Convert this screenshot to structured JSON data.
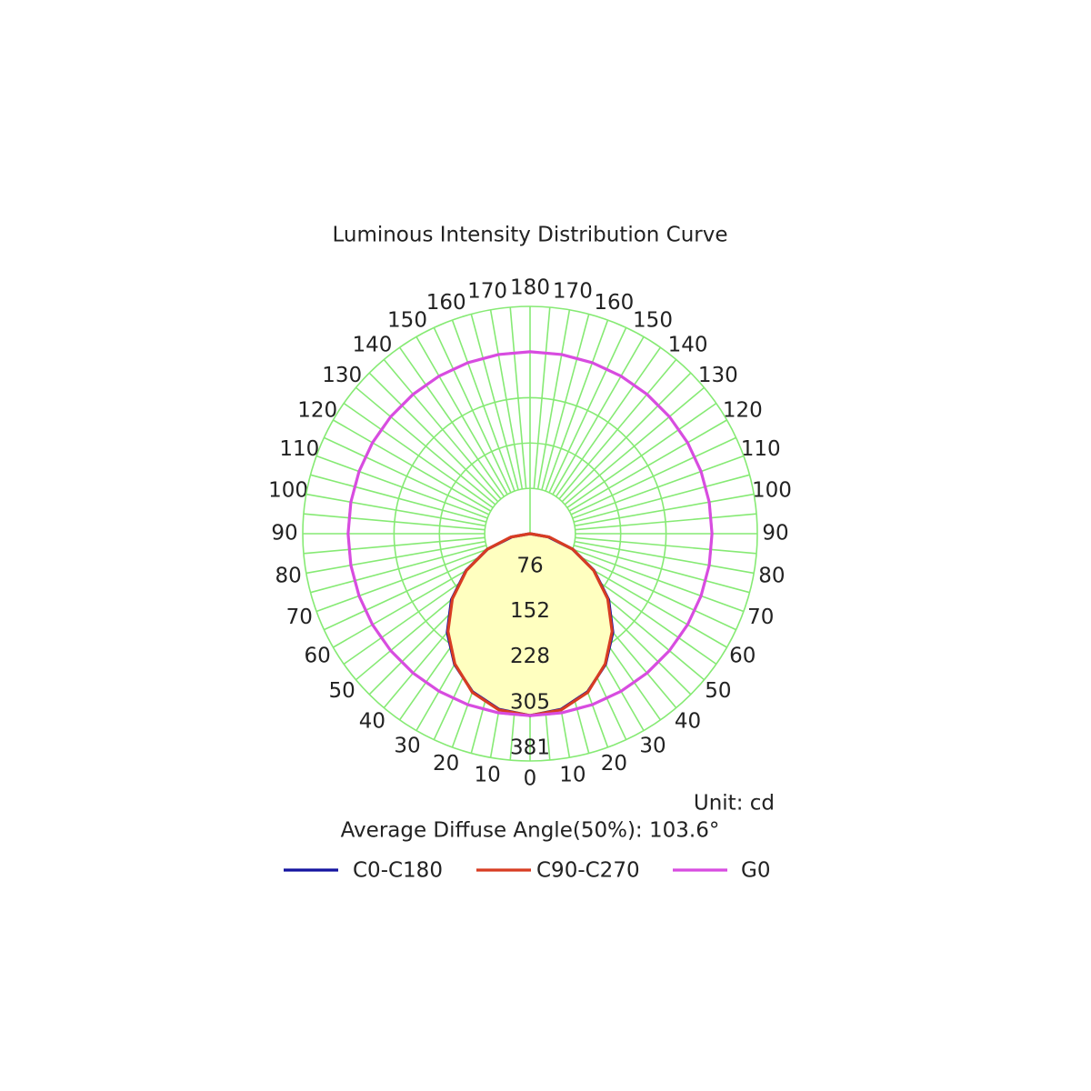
{
  "chart_data": {
    "type": "polar",
    "title": "Luminous Intensity Distribution Curve",
    "unit": "Unit: cd",
    "note": "Average Diffuse Angle(50%): 103.6°",
    "x": [
      -180,
      -170,
      -160,
      -150,
      -140,
      -130,
      -120,
      -110,
      -100,
      -90,
      -80,
      -70,
      -60,
      -50,
      -40,
      -30,
      -20,
      -10,
      0,
      10,
      20,
      30,
      40,
      50,
      60,
      70,
      80,
      90,
      100,
      110,
      120,
      130,
      140,
      150,
      160,
      170,
      180
    ],
    "xticks": [
      {
        "value": -170,
        "label": "170"
      },
      {
        "value": -160,
        "label": "160"
      },
      {
        "value": -150,
        "label": "150"
      },
      {
        "value": -140,
        "label": "140"
      },
      {
        "value": -130,
        "label": "130"
      },
      {
        "value": -120,
        "label": "120"
      },
      {
        "value": -110,
        "label": "110"
      },
      {
        "value": -100,
        "label": "100"
      },
      {
        "value": -90,
        "label": "90"
      },
      {
        "value": -80,
        "label": "80"
      },
      {
        "value": -70,
        "label": "70"
      },
      {
        "value": -60,
        "label": "60"
      },
      {
        "value": -50,
        "label": "50"
      },
      {
        "value": -40,
        "label": "40"
      },
      {
        "value": -30,
        "label": "30"
      },
      {
        "value": -20,
        "label": "20"
      },
      {
        "value": -10,
        "label": "10"
      },
      0,
      10,
      20,
      30,
      40,
      50,
      60,
      70,
      80,
      90,
      100,
      110,
      120,
      130,
      140,
      150,
      160,
      170,
      180
    ],
    "ylim": [
      0,
      381
    ],
    "yticks": [
      76,
      152,
      228,
      305,
      381
    ],
    "grid": true,
    "series": [
      {
        "name": "C0-C180",
        "color": "#1414a0",
        "fill": "#ffffc0",
        "values": [
          0,
          0,
          0,
          0,
          0,
          0,
          0,
          0,
          0,
          0,
          31,
          76,
          124,
          172,
          216,
          253,
          282,
          299,
          305,
          299,
          282,
          253,
          216,
          172,
          124,
          76,
          31,
          0,
          0,
          0,
          0,
          0,
          0,
          0,
          0,
          0,
          0
        ]
      },
      {
        "name": "C90-C270",
        "color": "#d83c22",
        "values": [
          0,
          0,
          0,
          0,
          0,
          0,
          0,
          0,
          0,
          0,
          33,
          76,
          123,
          170,
          214,
          252,
          283,
          300,
          305,
          300,
          283,
          252,
          214,
          170,
          123,
          76,
          33,
          0,
          0,
          0,
          0,
          0,
          0,
          0,
          0,
          0,
          0
        ]
      },
      {
        "name": "G0",
        "color": "#d84ce0",
        "values": [
          305,
          305,
          305,
          305,
          305,
          305,
          305,
          305,
          305,
          305,
          305,
          305,
          305,
          305,
          305,
          305,
          305,
          305,
          305,
          305,
          305,
          305,
          305,
          305,
          305,
          305,
          305,
          305,
          305,
          305,
          305,
          305,
          305,
          305,
          305,
          305,
          305
        ]
      }
    ]
  }
}
